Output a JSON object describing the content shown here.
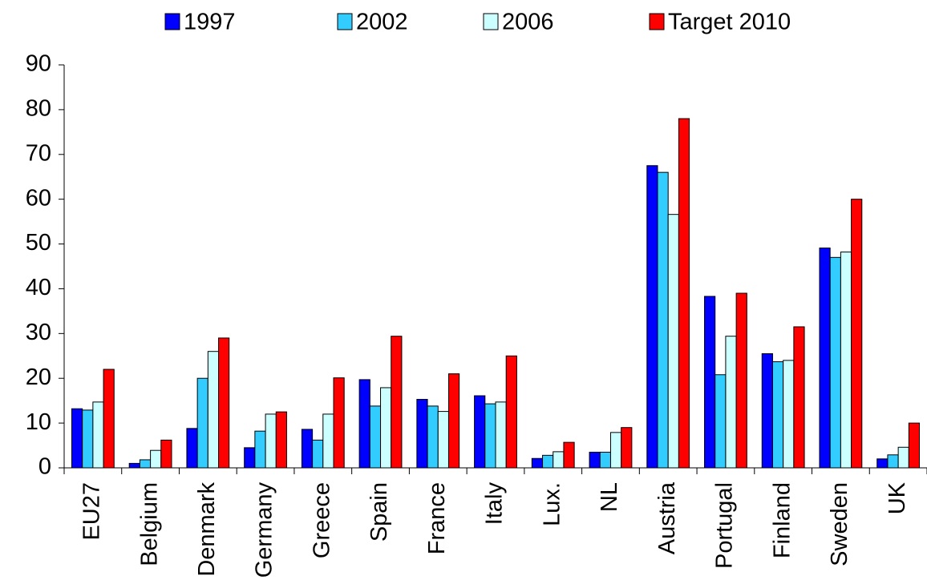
{
  "chart_data": {
    "type": "bar",
    "categories": [
      "EU27",
      "Belgium",
      "Denmark",
      "Germany",
      "Greece",
      "Spain",
      "France",
      "Italy",
      "Lux.",
      "NL",
      "Austria",
      "Portugal",
      "Finland",
      "Sweden",
      "UK"
    ],
    "series": [
      {
        "name": "1997",
        "color": "#0000ff",
        "values": [
          13.2,
          1,
          8.8,
          4.5,
          8.6,
          19.7,
          15.3,
          16.1,
          2.1,
          3.5,
          67.5,
          38.3,
          25.5,
          49.1,
          2
        ]
      },
      {
        "name": "2002",
        "color": "#33ccff",
        "values": [
          12.9,
          1.8,
          20,
          8.2,
          6.2,
          13.8,
          13.8,
          14.3,
          2.8,
          3.5,
          66,
          20.8,
          23.7,
          47,
          2.9
        ]
      },
      {
        "name": "2006",
        "color": "#ccffff",
        "values": [
          14.7,
          3.9,
          26,
          12,
          12,
          17.9,
          12.6,
          14.7,
          3.6,
          7.9,
          56.6,
          29.4,
          24,
          48.2,
          4.6
        ]
      },
      {
        "name": "Target 2010",
        "color": "#ff0000",
        "values": [
          22,
          6.2,
          29,
          12.5,
          20.1,
          29.4,
          21,
          25,
          5.7,
          9,
          78,
          39,
          31.5,
          60,
          10
        ]
      }
    ],
    "ylim": [
      0,
      90
    ],
    "yticks": [
      0,
      10,
      20,
      30,
      40,
      50,
      60,
      70,
      80,
      90
    ],
    "legend": "top"
  }
}
